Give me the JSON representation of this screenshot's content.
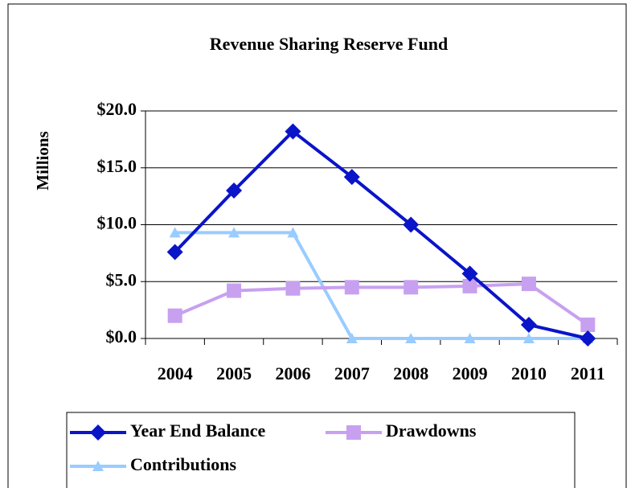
{
  "chart_data": {
    "type": "line",
    "title": "Revenue Sharing Reserve Fund",
    "y_label": "Millions",
    "categories": [
      "2004",
      "2005",
      "2006",
      "2007",
      "2008",
      "2009",
      "2010",
      "2011"
    ],
    "series": [
      {
        "name": "Year End Balance",
        "color": "#0a14c8",
        "marker": "diamond",
        "values": [
          7.6,
          13.0,
          18.2,
          14.2,
          10.0,
          5.7,
          1.2,
          0
        ]
      },
      {
        "name": "Drawdowns",
        "color": "#c8a0f0",
        "marker": "square",
        "values": [
          2.0,
          4.2,
          4.4,
          4.5,
          4.5,
          4.6,
          4.8,
          1.2
        ]
      },
      {
        "name": "Contributions",
        "color": "#99ccff",
        "marker": "triangle",
        "values": [
          9.3,
          9.3,
          9.3,
          0,
          0,
          0,
          0,
          0
        ]
      }
    ],
    "ylim": [
      0,
      20
    ],
    "yticks": [
      {
        "value": 0,
        "label": "$0.0"
      },
      {
        "value": 5,
        "label": "$5.0"
      },
      {
        "value": 10,
        "label": "$10.0"
      },
      {
        "value": 15,
        "label": "$15.0"
      },
      {
        "value": 20,
        "label": "$20.0"
      }
    ],
    "grid": true,
    "legend": "bottom"
  }
}
